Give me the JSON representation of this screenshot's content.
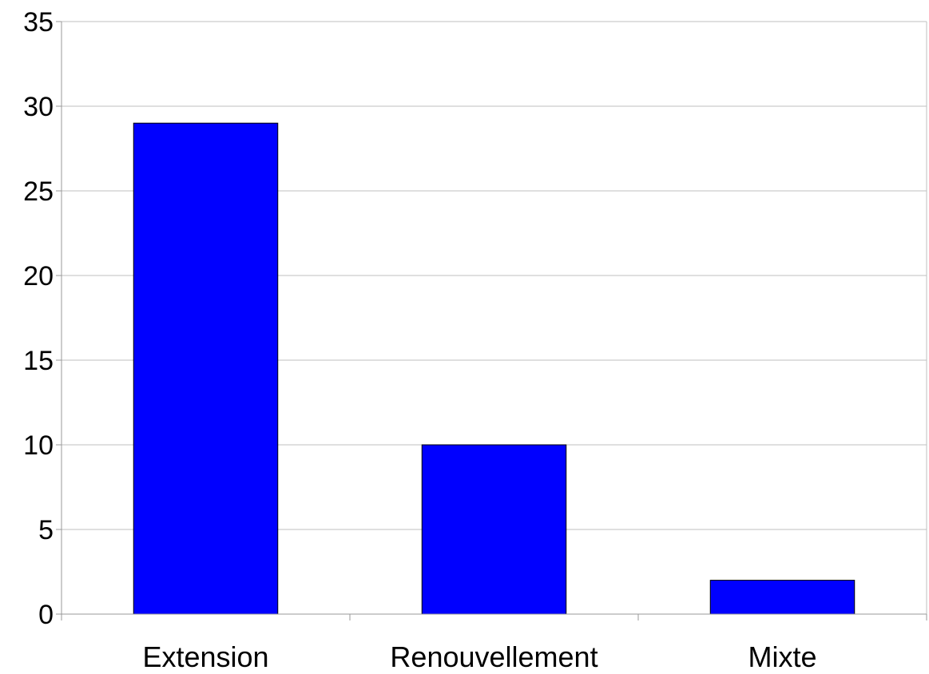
{
  "chart_data": {
    "type": "bar",
    "title": "",
    "xlabel": "",
    "ylabel": "",
    "categories": [
      "Extension",
      "Renouvellement",
      "Mixte"
    ],
    "values": [
      29,
      10,
      2
    ],
    "ylim": [
      0,
      35
    ],
    "yticks": [
      "0",
      "5",
      "10",
      "15",
      "20",
      "25",
      "30",
      "35"
    ],
    "grid": true,
    "legend": "none",
    "bar_color": "#0000ff",
    "bar_outline_color": "#000000",
    "grid_color": "#bfbfbf",
    "axis_color": "#999999"
  }
}
